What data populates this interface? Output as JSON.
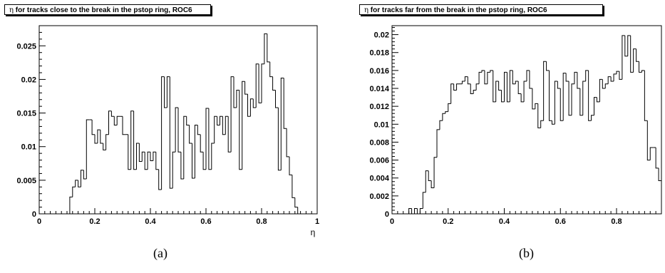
{
  "chart_data": [
    {
      "type": "histogram",
      "title_symbol": "η",
      "title": " for tracks close to the break in the pstop ring, ROC6",
      "caption": "(a)",
      "xlabel": "η",
      "ylabel": "",
      "xlim": [
        0,
        1
      ],
      "ylim": [
        0,
        0.028
      ],
      "xticks": [
        0,
        0.2,
        0.4,
        0.6,
        0.8,
        1
      ],
      "xtick_labels": [
        "0",
        "0.2",
        "0.4",
        "0.6",
        "0.8",
        "1"
      ],
      "yticks": [
        0,
        0.005,
        0.01,
        0.015,
        0.02,
        0.025
      ],
      "ytick_labels": [
        "0",
        "0.005",
        "0.01",
        "0.015",
        "0.02",
        "0.025"
      ],
      "bin_width": 0.01,
      "bins_start": 0.0,
      "values": [
        0,
        0,
        0,
        0,
        0,
        0,
        0,
        0,
        0,
        0,
        0,
        0.0025,
        0.004,
        0.005,
        0.004,
        0.0065,
        0.0052,
        0.014,
        0.014,
        0.0118,
        0.0105,
        0.0125,
        0.0105,
        0.0095,
        0.0118,
        0.0153,
        0.0145,
        0.0132,
        0.0145,
        0.0145,
        0.0118,
        0.0118,
        0.0066,
        0.0153,
        0.0066,
        0.0105,
        0.0078,
        0.0092,
        0.0066,
        0.0092,
        0.0079,
        0.0092,
        0.0066,
        0.0036,
        0.0204,
        0.0158,
        0.0204,
        0.0038,
        0.0092,
        0.0158,
        0.0092,
        0.0052,
        0.0145,
        0.0132,
        0.0105,
        0.0053,
        0.0132,
        0.0118,
        0.0092,
        0.0066,
        0.0157,
        0.0066,
        0.0105,
        0.0145,
        0.0132,
        0.0145,
        0.0118,
        0.0145,
        0.0092,
        0.0204,
        0.0158,
        0.0184,
        0.0066,
        0.0197,
        0.0178,
        0.0145,
        0.0171,
        0.0158,
        0.0223,
        0.0165,
        0.0223,
        0.0268,
        0.0226,
        0.0204,
        0.0184,
        0.0158,
        0.0065,
        0.0202,
        0.0127,
        0.0085,
        0.0058,
        0.0024,
        0.001,
        0,
        0,
        0,
        0,
        0,
        0,
        0
      ]
    },
    {
      "type": "histogram",
      "title_symbol": "η",
      "title": " for tracks far from the break in the pstop ring, ROC6",
      "caption": "(b)",
      "xlabel": "",
      "ylabel": "",
      "xlim": [
        0,
        0.96
      ],
      "ylim": [
        0,
        0.021
      ],
      "xticks": [
        0,
        0.2,
        0.4,
        0.6,
        0.8
      ],
      "xtick_labels": [
        "0",
        "0.2",
        "0.4",
        "0.6",
        "0.8"
      ],
      "yticks": [
        0,
        0.002,
        0.004,
        0.006,
        0.008,
        0.01,
        0.012,
        0.014,
        0.016,
        0.018,
        0.02
      ],
      "ytick_labels": [
        "0",
        "0.002",
        "0.004",
        "0.006",
        "0.008",
        "0.01",
        "0.012",
        "0.014",
        "0.016",
        "0.018",
        "0.02"
      ],
      "bin_width": 0.01,
      "bins_start": 0.0,
      "values": [
        0,
        0,
        0,
        0,
        0,
        0,
        0.0006,
        0,
        0.0006,
        0,
        0.0006,
        0.0024,
        0.0048,
        0.0037,
        0.0029,
        0.0063,
        0.0094,
        0.0104,
        0.0112,
        0.0114,
        0.0123,
        0.0145,
        0.0138,
        0.0145,
        0.0145,
        0.0148,
        0.0153,
        0.0145,
        0.0134,
        0.0138,
        0.0145,
        0.0158,
        0.016,
        0.0145,
        0.0158,
        0.016,
        0.0125,
        0.0148,
        0.0138,
        0.0125,
        0.0158,
        0.0125,
        0.016,
        0.0145,
        0.0148,
        0.0134,
        0.0125,
        0.0148,
        0.016,
        0.014,
        0.0117,
        0.0123,
        0.0096,
        0.0104,
        0.017,
        0.016,
        0.0104,
        0.01,
        0.0148,
        0.014,
        0.0104,
        0.0157,
        0.0148,
        0.011,
        0.0145,
        0.0158,
        0.014,
        0.011,
        0.0148,
        0.016,
        0.0104,
        0.011,
        0.013,
        0.0125,
        0.015,
        0.014,
        0.0145,
        0.0153,
        0.0148,
        0.0156,
        0.0159,
        0.015,
        0.0199,
        0.0176,
        0.0199,
        0.0158,
        0.0184,
        0.017,
        0.0158,
        0.016,
        0.0104,
        0.006,
        0.0074,
        0.0074,
        0.0051,
        0.0037,
        0.0028,
        0.0013,
        0.0005,
        0.0015,
        0.0002,
        0,
        0.0003,
        0.0003,
        0,
        0
      ]
    }
  ]
}
